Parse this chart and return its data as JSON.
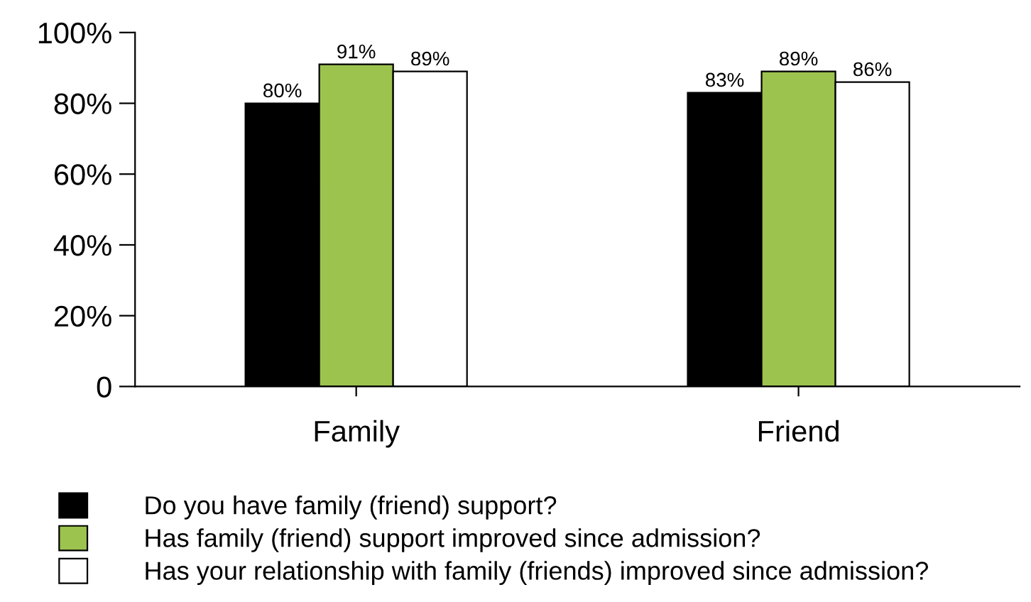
{
  "chart_data": {
    "type": "bar",
    "categories": [
      "Family",
      "Friend"
    ],
    "series": [
      {
        "name": "Do you have family (friend) support?",
        "color": "#000000",
        "values": [
          80,
          83
        ],
        "value_labels": [
          "80%",
          "83%"
        ]
      },
      {
        "name": "Has family (friend) support improved since admission?",
        "color": "#9dc34f",
        "values": [
          91,
          89
        ],
        "value_labels": [
          "91%",
          "89%"
        ]
      },
      {
        "name": "Has your relationship with family (friends) improved since admission?",
        "color": "#ffffff",
        "values": [
          89,
          86
        ],
        "value_labels": [
          "89%",
          "86%"
        ]
      }
    ],
    "ylim": [
      0,
      100
    ],
    "yticks": [
      {
        "value": 0,
        "label": "0"
      },
      {
        "value": 20,
        "label": "20%"
      },
      {
        "value": 40,
        "label": "40%"
      },
      {
        "value": 60,
        "label": "60%"
      },
      {
        "value": 80,
        "label": "80%"
      },
      {
        "value": 100,
        "label": "100%"
      }
    ],
    "grid": false,
    "legend": "bottom"
  }
}
